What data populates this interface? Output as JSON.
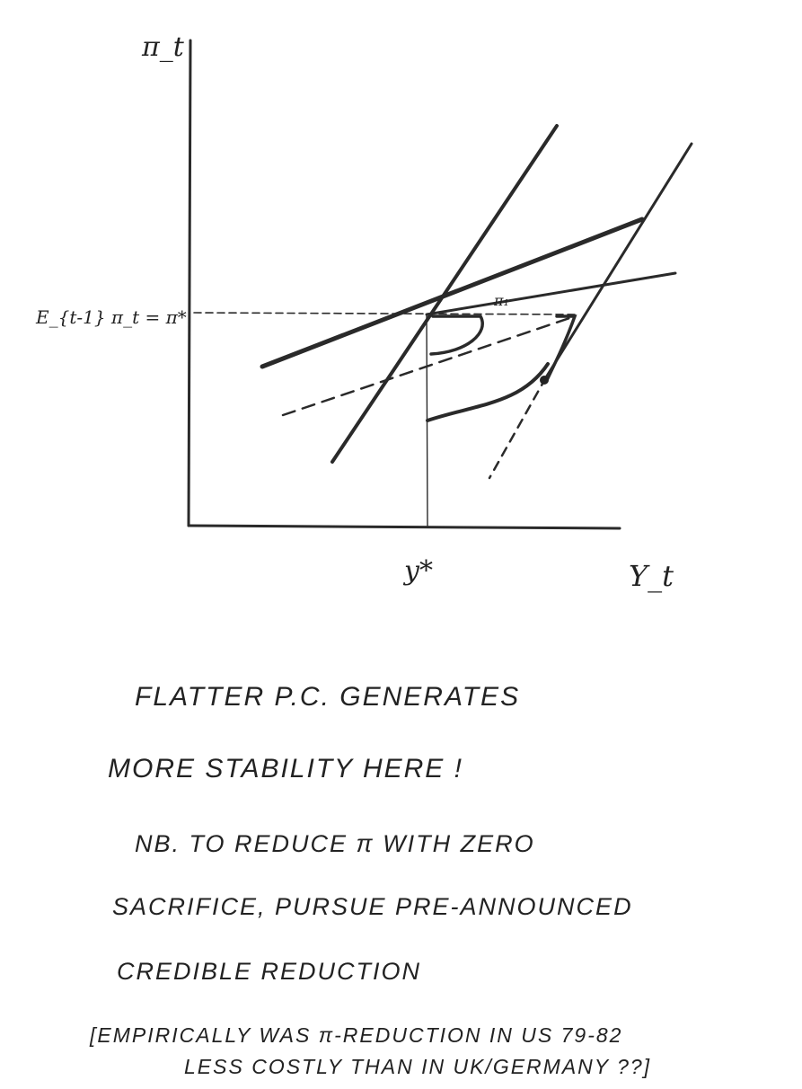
{
  "diagram": {
    "axes": {
      "y_label": "π_t",
      "x_label": "Y_t",
      "x_marker": "y*",
      "y_marker": "E_{t-1} π_t = π*",
      "point_label": "π₁"
    },
    "notes": [
      "FLATTER P.C. GENERATES",
      "MORE STABILITY HERE !",
      "NB. TO REDUCE π WITH ZERO",
      "SACRIFICE, PURSUE PRE-ANNOUNCED",
      "CREDIBLE REDUCTION",
      "[EMPIRICALLY WAS π-REDUCTION IN US 79-82",
      "LESS COSTLY THAN IN UK/GERMANY ??]"
    ]
  }
}
